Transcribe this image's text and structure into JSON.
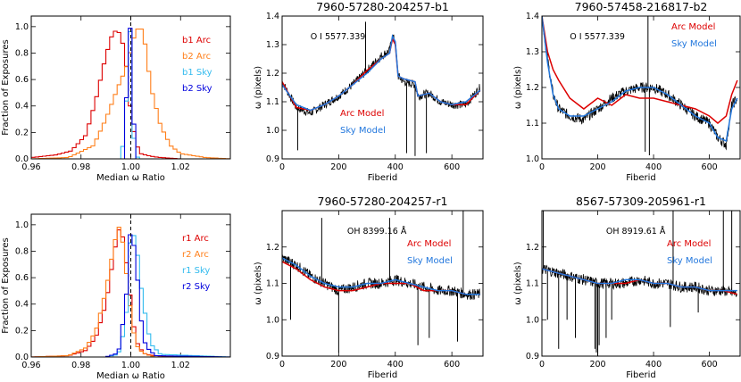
{
  "chart_data": [
    {
      "type": "line",
      "panel": "hist-b",
      "xlabel": "Median ω Ratio",
      "ylabel": "Fraction of Exposures",
      "xlim": [
        0.96,
        1.04
      ],
      "ylim": [
        0,
        1.08
      ],
      "xticks": [
        "0.96",
        "0.98",
        "1.00",
        "1.02"
      ],
      "yticks": [
        "0.0",
        "0.2",
        "0.4",
        "0.6",
        "0.8",
        "1.0"
      ],
      "vline": 1.0,
      "series": [
        {
          "name": "b1 Arc",
          "color": "#dd0000",
          "x": [
            0.96,
            0.97,
            0.976,
            0.982,
            0.986,
            0.99,
            0.993,
            0.996,
            0.998,
            1.0,
            1.002,
            1.004,
            1.008,
            1.012,
            1.02,
            1.04
          ],
          "y": [
            0.01,
            0.03,
            0.06,
            0.18,
            0.45,
            0.78,
            0.97,
            0.95,
            0.75,
            0.35,
            0.12,
            0.04,
            0.02,
            0.01,
            0.0,
            0.0
          ]
        },
        {
          "name": "b2 Arc",
          "color": "#ff7f1a",
          "x": [
            0.96,
            0.975,
            0.985,
            0.99,
            0.995,
            0.998,
            1.0,
            1.002,
            1.004,
            1.006,
            1.008,
            1.012,
            1.016,
            1.02,
            1.03,
            1.04
          ],
          "y": [
            0.0,
            0.01,
            0.1,
            0.3,
            0.55,
            0.68,
            0.82,
            0.97,
            1.0,
            0.85,
            0.55,
            0.25,
            0.1,
            0.04,
            0.01,
            0.0
          ]
        },
        {
          "name": "b1 Sky",
          "color": "#33bbee",
          "x": [
            0.96,
            0.996,
            0.998,
            0.999,
            1.0,
            1.001,
            1.002,
            1.004,
            1.04
          ],
          "y": [
            0.0,
            0.0,
            0.25,
            1.0,
            0.95,
            0.2,
            0.02,
            0.0,
            0.0
          ]
        },
        {
          "name": "b2 Sky",
          "color": "#0000dd",
          "x": [
            0.96,
            0.997,
            0.998,
            0.999,
            1.0,
            1.001,
            1.002,
            1.04
          ],
          "y": [
            0.0,
            0.0,
            0.3,
            0.95,
            1.0,
            0.35,
            0.0,
            0.0
          ]
        }
      ],
      "legend": [
        "b1 Arc",
        "b2 Arc",
        "b1 Sky",
        "b2 Sky"
      ]
    },
    {
      "type": "line",
      "panel": "hist-r",
      "xlabel": "Median ω Ratio",
      "ylabel": "Fraction of Exposures",
      "xlim": [
        0.96,
        1.04
      ],
      "ylim": [
        0,
        1.08
      ],
      "xticks": [
        "0.96",
        "0.98",
        "1.00",
        "1.02"
      ],
      "yticks": [
        "0.0",
        "0.2",
        "0.4",
        "0.6",
        "0.8",
        "1.0"
      ],
      "vline": 1.0,
      "series": [
        {
          "name": "r1 Arc",
          "color": "#dd0000",
          "x": [
            0.96,
            0.975,
            0.982,
            0.986,
            0.99,
            0.993,
            0.995,
            0.997,
            0.999,
            1.001,
            1.003,
            1.006,
            1.01,
            1.02,
            1.04
          ],
          "y": [
            0.0,
            0.01,
            0.05,
            0.15,
            0.4,
            0.75,
            0.97,
            0.9,
            0.6,
            0.25,
            0.08,
            0.02,
            0.01,
            0.0,
            0.0
          ]
        },
        {
          "name": "r2 Arc",
          "color": "#ff7f1a",
          "x": [
            0.96,
            0.975,
            0.982,
            0.986,
            0.99,
            0.993,
            0.995,
            0.997,
            0.999,
            1.001,
            1.003,
            1.006,
            1.01,
            1.02,
            1.04
          ],
          "y": [
            0.0,
            0.01,
            0.07,
            0.2,
            0.5,
            0.82,
            1.0,
            0.85,
            0.5,
            0.2,
            0.06,
            0.02,
            0.0,
            0.0,
            0.0
          ]
        },
        {
          "name": "r1 Sky",
          "color": "#33bbee",
          "x": [
            0.96,
            0.99,
            0.995,
            0.998,
            1.0,
            1.002,
            1.004,
            1.006,
            1.008,
            1.012,
            1.04
          ],
          "y": [
            0.0,
            0.0,
            0.02,
            0.25,
            0.95,
            0.9,
            0.55,
            0.3,
            0.1,
            0.02,
            0.0
          ]
        },
        {
          "name": "r2 Sky",
          "color": "#0000dd",
          "x": [
            0.96,
            0.99,
            0.995,
            0.998,
            1.0,
            1.002,
            1.004,
            1.006,
            1.01,
            1.04
          ],
          "y": [
            0.0,
            0.0,
            0.03,
            0.4,
            1.0,
            0.75,
            0.3,
            0.08,
            0.01,
            0.0
          ]
        }
      ],
      "legend": [
        "r1 Arc",
        "r2 Arc",
        "r1 Sky",
        "r2 Sky"
      ]
    },
    {
      "type": "line",
      "panel": "fiber-b1",
      "title": "7960-57280-204257-b1",
      "xlabel": "Fiberid",
      "ylabel": "ω (pixels)",
      "xlim": [
        0,
        710
      ],
      "ylim": [
        0.9,
        1.4
      ],
      "xticks": [
        "0",
        "200",
        "400",
        "600"
      ],
      "yticks": [
        "0.9",
        "1.0",
        "1.1",
        "1.2",
        "1.3",
        "1.4"
      ],
      "annotation": "O I 5577.339",
      "fiberid": [
        0,
        50,
        100,
        150,
        200,
        250,
        300,
        350,
        380,
        390,
        400,
        410,
        430,
        470,
        480,
        520,
        560,
        600,
        650,
        700
      ],
      "data_points": [
        1.17,
        1.08,
        1.06,
        1.09,
        1.12,
        1.16,
        1.21,
        1.26,
        1.28,
        1.33,
        1.31,
        1.19,
        1.17,
        1.16,
        1.12,
        1.13,
        1.1,
        1.09,
        1.09,
        1.15
      ],
      "spikes": [
        [
          55,
          0.93
        ],
        [
          295,
          1.38
        ],
        [
          440,
          0.92
        ],
        [
          470,
          0.91
        ],
        [
          510,
          0.92
        ]
      ],
      "arc_model": [
        1.17,
        1.08,
        1.07,
        1.09,
        1.12,
        1.16,
        1.21,
        1.25,
        1.27,
        1.32,
        1.3,
        1.19,
        1.18,
        1.17,
        1.12,
        1.13,
        1.1,
        1.09,
        1.09,
        1.14
      ],
      "sky_model": [
        1.16,
        1.09,
        1.07,
        1.09,
        1.12,
        1.16,
        1.2,
        1.25,
        1.27,
        1.33,
        1.31,
        1.19,
        1.18,
        1.17,
        1.12,
        1.13,
        1.1,
        1.09,
        1.1,
        1.14
      ],
      "legend": [
        "Arc Model",
        "Sky Model"
      ]
    },
    {
      "type": "line",
      "panel": "fiber-b2",
      "title": "7960-57458-216817-b2",
      "xlabel": "Fiberid",
      "ylabel": "ω (pixels)",
      "xlim": [
        0,
        710
      ],
      "ylim": [
        1.0,
        1.4
      ],
      "xticks": [
        "0",
        "200",
        "400",
        "600"
      ],
      "yticks": [
        "1.0",
        "1.1",
        "1.2",
        "1.3",
        "1.4"
      ],
      "annotation": "O I 5577.339",
      "fiberid": [
        0,
        20,
        40,
        60,
        100,
        150,
        200,
        250,
        300,
        350,
        400,
        450,
        500,
        550,
        600,
        630,
        660,
        680,
        700
      ],
      "data_points": [
        1.4,
        1.28,
        1.18,
        1.14,
        1.12,
        1.11,
        1.14,
        1.17,
        1.19,
        1.2,
        1.2,
        1.18,
        1.15,
        1.12,
        1.1,
        1.06,
        1.04,
        1.15,
        1.17
      ],
      "spikes": [
        [
          380,
          1.42
        ],
        [
          385,
          1.01
        ],
        [
          370,
          1.02
        ]
      ],
      "arc_model": [
        1.4,
        1.3,
        1.25,
        1.22,
        1.17,
        1.14,
        1.17,
        1.15,
        1.18,
        1.17,
        1.17,
        1.16,
        1.15,
        1.14,
        1.12,
        1.1,
        1.12,
        1.18,
        1.22
      ],
      "sky_model": [
        1.4,
        1.27,
        1.18,
        1.14,
        1.12,
        1.12,
        1.14,
        1.16,
        1.19,
        1.2,
        1.2,
        1.18,
        1.15,
        1.12,
        1.1,
        1.06,
        1.05,
        1.14,
        1.17
      ],
      "legend": [
        "Arc Model",
        "Sky Model"
      ]
    },
    {
      "type": "line",
      "panel": "fiber-r1a",
      "title": "7960-57280-204257-r1",
      "xlabel": "Fiberid",
      "ylabel": "ω (pixels)",
      "xlim": [
        0,
        710
      ],
      "ylim": [
        0.9,
        1.3
      ],
      "xticks": [
        "0",
        "200",
        "400",
        "600"
      ],
      "yticks": [
        "0.9",
        "1.0",
        "1.1",
        "1.2"
      ],
      "annotation": "OH 8399.16 Å",
      "fiberid": [
        0,
        50,
        100,
        150,
        200,
        250,
        300,
        350,
        400,
        450,
        500,
        550,
        600,
        650,
        700
      ],
      "data_points": [
        1.17,
        1.15,
        1.12,
        1.1,
        1.08,
        1.09,
        1.1,
        1.1,
        1.11,
        1.1,
        1.09,
        1.08,
        1.08,
        1.07,
        1.07
      ],
      "spikes": [
        [
          30,
          1.0
        ],
        [
          140,
          1.28
        ],
        [
          200,
          0.91
        ],
        [
          380,
          1.28
        ],
        [
          480,
          0.93
        ],
        [
          520,
          0.95
        ],
        [
          620,
          0.94
        ],
        [
          640,
          1.32
        ]
      ],
      "arc_model": [
        1.16,
        1.14,
        1.11,
        1.09,
        1.08,
        1.08,
        1.09,
        1.1,
        1.1,
        1.1,
        1.08,
        1.08,
        1.08,
        1.07,
        1.07
      ],
      "sky_model": [
        1.17,
        1.15,
        1.12,
        1.1,
        1.09,
        1.09,
        1.1,
        1.1,
        1.11,
        1.1,
        1.09,
        1.08,
        1.08,
        1.07,
        1.07
      ],
      "legend": [
        "Arc Model",
        "Sky Model"
      ]
    },
    {
      "type": "line",
      "panel": "fiber-r1b",
      "title": "8567-57309-205961-r1",
      "xlabel": "Fiberid",
      "ylabel": "ω (pixels)",
      "xlim": [
        0,
        710
      ],
      "ylim": [
        0.9,
        1.3
      ],
      "xticks": [
        "0",
        "200",
        "400",
        "600"
      ],
      "yticks": [
        "0.9",
        "1.0",
        "1.1",
        "1.2"
      ],
      "annotation": "OH 8919.61 Å",
      "fiberid": [
        0,
        50,
        100,
        150,
        200,
        250,
        300,
        350,
        400,
        450,
        500,
        550,
        600,
        650,
        700
      ],
      "data_points": [
        1.14,
        1.13,
        1.12,
        1.11,
        1.1,
        1.1,
        1.1,
        1.11,
        1.1,
        1.1,
        1.09,
        1.09,
        1.08,
        1.08,
        1.07
      ],
      "spikes": [
        [
          5,
          1.3
        ],
        [
          20,
          1.0
        ],
        [
          60,
          0.92
        ],
        [
          90,
          1.0
        ],
        [
          120,
          0.95
        ],
        [
          190,
          0.92
        ],
        [
          195,
          0.91
        ],
        [
          200,
          0.9
        ],
        [
          205,
          0.93
        ],
        [
          230,
          0.95
        ],
        [
          250,
          1.0
        ],
        [
          460,
          0.98
        ],
        [
          470,
          1.3
        ],
        [
          560,
          1.02
        ],
        [
          650,
          1.3
        ],
        [
          680,
          1.3
        ]
      ],
      "arc_model": [
        1.14,
        1.13,
        1.12,
        1.11,
        1.1,
        1.1,
        1.1,
        1.11,
        1.1,
        1.1,
        1.09,
        1.09,
        1.08,
        1.08,
        1.07
      ],
      "sky_model": [
        1.14,
        1.13,
        1.12,
        1.11,
        1.1,
        1.1,
        1.11,
        1.11,
        1.1,
        1.1,
        1.09,
        1.09,
        1.08,
        1.08,
        1.08
      ],
      "legend": [
        "Arc Model",
        "Sky Model"
      ]
    }
  ],
  "colors": {
    "arc": "#dd0000",
    "sky": "#2277dd",
    "data": "#000000"
  }
}
